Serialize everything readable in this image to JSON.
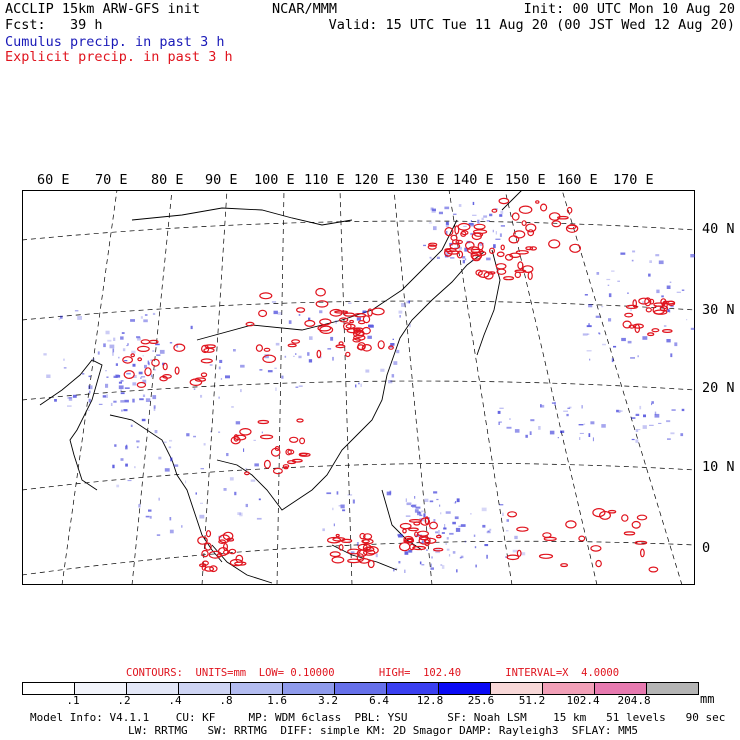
{
  "header": {
    "line1_left": "ACCLIP 15km ARW-GFS init",
    "line2_left": "Fcst:   39 h",
    "center": "NCAR/MMM",
    "line1_right": "Init: 00 UTC Mon 10 Aug 20",
    "line2_right": "Valid: 15 UTC Tue 11 Aug 20 (00 JST Wed 12 Aug 20)"
  },
  "legend": {
    "cumulus": "Cumulus precip. in past 3 h",
    "explicit": "Explicit precip. in past 3 h",
    "cumulus_color": "#2b2bd6",
    "explicit_color": "#e0141e"
  },
  "map": {
    "lon_labels": [
      "60 E",
      "70 E",
      "80 E",
      "90 E",
      "100 E",
      "110 E",
      "120 E",
      "130 E",
      "140 E",
      "150 E",
      "160 E",
      "170 E"
    ],
    "lat_labels": [
      "40 N",
      "30 N",
      "20 N",
      "10 N",
      "0"
    ]
  },
  "colorbar": {
    "contours_line": "CONTOURS:  UNITS=mm  LOW= 0.10000       HIGH=  102.40       INTERVAL=X  4.0000",
    "colors": [
      "#ffffff",
      "#f2f4fb",
      "#e3e7f7",
      "#ced4f3",
      "#b3bcf0",
      "#8f9bec",
      "#6670ea",
      "#3a3ff0",
      "#0a0af5",
      "#f8d8d8",
      "#f2a0b8",
      "#e77ab0",
      "#b4b4b4",
      "#8a8a8a",
      "#3a3a3a",
      "#c9a0f0"
    ],
    "ticks": [
      ".1",
      ".2",
      ".4",
      ".8",
      "1.6",
      "3.2",
      "6.4",
      "12.8",
      "25.6",
      "51.2",
      "102.4",
      "204.8"
    ],
    "unit": "mm"
  },
  "footer": {
    "line1": "Model Info: V4.1.1    CU: KF     MP: WDM 6class  PBL: YSU      SF: Noah LSM    15 km   51 levels   90 sec",
    "line2": "LW: RRTMG   SW: RRTMG  DIFF: simple KM: 2D Smagor DAMP: Rayleigh3  SFLAY: MM5"
  }
}
